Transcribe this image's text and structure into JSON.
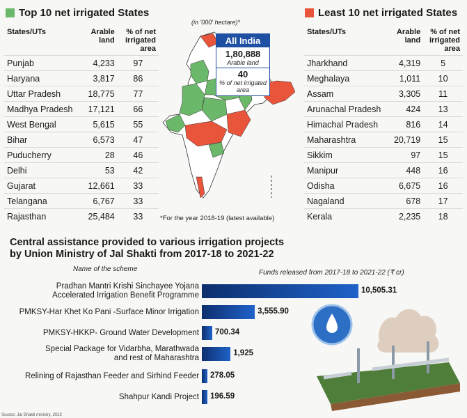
{
  "top10": {
    "title": "Top 10 net irrigated States",
    "headers": [
      "States/UTs",
      "Arable land",
      "% of net irrigated area"
    ],
    "rows": [
      [
        "Punjab",
        "4,233",
        "97"
      ],
      [
        "Haryana",
        "3,817",
        "86"
      ],
      [
        "Uttar Pradesh",
        "18,775",
        "77"
      ],
      [
        "Madhya Pradesh",
        "17,121",
        "66"
      ],
      [
        "West Bengal",
        "5,615",
        "55"
      ],
      [
        "Bihar",
        "6,573",
        "47"
      ],
      [
        "Puducherry",
        "28",
        "46"
      ],
      [
        "Delhi",
        "53",
        "42"
      ],
      [
        "Gujarat",
        "12,661",
        "33"
      ],
      [
        "Telangana",
        "6,767",
        "33"
      ],
      [
        "Rajasthan",
        "25,484",
        "33"
      ]
    ]
  },
  "least10": {
    "title": "Least 10 net irrigated States",
    "headers": [
      "States/UTs",
      "Arable land",
      "% of net irrigated area"
    ],
    "rows": [
      [
        "Jharkhand",
        "4,319",
        "5"
      ],
      [
        "Meghalaya",
        "1,011",
        "10"
      ],
      [
        "Assam",
        "3,305",
        "11"
      ],
      [
        "Arunachal Pradesh",
        "424",
        "13"
      ],
      [
        "Himachal Pradesh",
        "816",
        "14"
      ],
      [
        "Maharashtra",
        "20,719",
        "15"
      ],
      [
        "Sikkim",
        "97",
        "15"
      ],
      [
        "Manipur",
        "448",
        "16"
      ],
      [
        "Odisha",
        "6,675",
        "16"
      ],
      [
        "Nagaland",
        "678",
        "17"
      ],
      [
        "Kerala",
        "2,235",
        "18"
      ]
    ]
  },
  "map": {
    "unit_note": "(in '000' hectare)*",
    "all_india_title": "All India",
    "arable_value": "1,80,888",
    "arable_label": "Arable land",
    "pct_value": "40",
    "pct_label": "% of net irrigated area",
    "footnote": "*For the year 2018-19 (latest available)"
  },
  "colors": {
    "top": "#6cb86a",
    "least": "#e8553a",
    "bar": "#1a4fa8"
  },
  "chart_data": {
    "type": "bar",
    "title": "Central assistance provided to various irrigation projects by Union Ministry of Jal Shakti from 2017-18 to 2021-22",
    "xlabel": "Funds released from 2017-18 to 2021-22 (₹ cr)",
    "ylabel": "Name of the scheme",
    "categories": [
      "Pradhan Mantri Krishi Sinchayee Yojana Accelerated Irrigation Benefit Programme",
      "PMKSY-Har Khet Ko Pani -Surface Minor Irrigation",
      "PMKSY-HKKP- Ground Water Development",
      "Special Package for Vidarbha, Marathwada and rest of Maharashtra",
      "Relining of Rajasthan Feeder and Sirhind Feeder",
      "Shahpur Kandi Project"
    ],
    "values": [
      10505.31,
      3555.9,
      700.34,
      1925,
      278.05,
      196.59
    ],
    "value_labels": [
      "10,505.31",
      "3,555.90",
      "700.34",
      "1,925",
      "278.05",
      "196.59"
    ],
    "label_lines": [
      [
        "Pradhan Mantri Krishi Sinchayee Yojana",
        "Accelerated Irrigation Benefit Programme"
      ],
      [
        "PMKSY-Har Khet Ko Pani -Surface Minor Irrigation"
      ],
      [
        "PMKSY-HKKP- Ground Water Development"
      ],
      [
        "Special Package for Vidarbha, Marathwada",
        "and rest of Maharashtra"
      ],
      [
        "Relining of Rajasthan Feeder and Sirhind Feeder"
      ],
      [
        "Shahpur Kandi Project"
      ]
    ]
  },
  "source": "Source: Jal Shakti ministry, 2022"
}
